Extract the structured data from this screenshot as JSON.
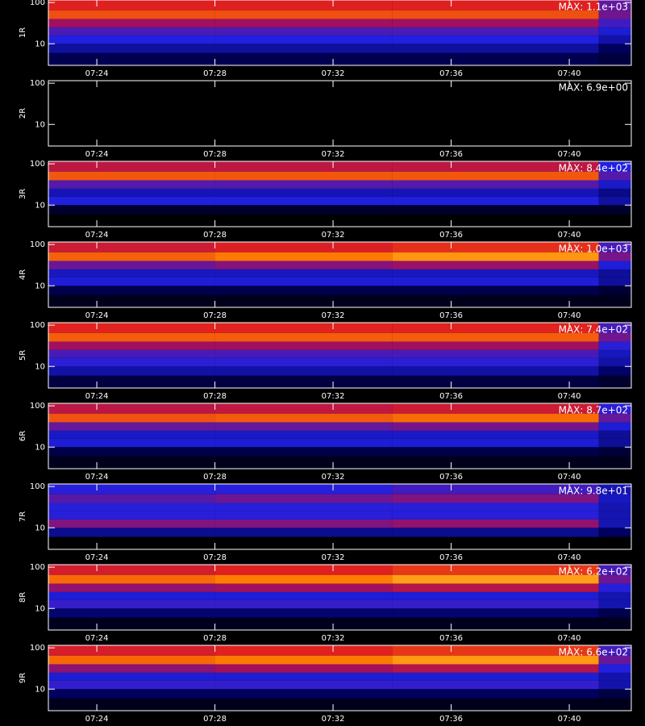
{
  "chart_data": {
    "type": "heatmap",
    "log_y": true,
    "xlim": [
      22.36,
      42.1
    ],
    "xticks": [
      {
        "value": 24,
        "label": "07:24"
      },
      {
        "value": 28,
        "label": "07:28"
      },
      {
        "value": 32,
        "label": "07:32"
      },
      {
        "value": 36,
        "label": "07:36"
      },
      {
        "value": 40,
        "label": "07:40"
      }
    ],
    "ylim": [
      3,
      115
    ],
    "yticks": [
      10,
      100
    ],
    "x_edges": [
      22.36,
      28,
      34,
      41,
      42.1
    ],
    "y_edges": [
      3,
      6,
      10,
      16,
      25,
      40,
      65,
      115
    ],
    "panels": [
      {
        "ylabel": "1R",
        "max": 1100,
        "max_label": "MAX: 1.1e+03",
        "z": [
          [
            7,
            7,
            7,
            4
          ],
          [
            22,
            22,
            22,
            10
          ],
          [
            46,
            46,
            46,
            25
          ],
          [
            66,
            66,
            66,
            40
          ],
          [
            134,
            134,
            134,
            60
          ],
          [
            380,
            380,
            380,
            90
          ],
          [
            270,
            270,
            270,
            80
          ]
        ]
      },
      {
        "ylabel": "2R",
        "max": 6.9,
        "max_label": "MAX: 6.9e+00",
        "z": [
          [
            0,
            0,
            0,
            0
          ],
          [
            0,
            0,
            0,
            0
          ],
          [
            0,
            0,
            0,
            0
          ],
          [
            0,
            0,
            0,
            0
          ],
          [
            0,
            0,
            0,
            0
          ],
          [
            0,
            0,
            0,
            0
          ],
          [
            0,
            0,
            0,
            0
          ]
        ]
      },
      {
        "ylabel": "3R",
        "max": 840,
        "max_label": "MAX: 8.4e+02",
        "z": [
          [
            0,
            0,
            0,
            0
          ],
          [
            2,
            2,
            2,
            2
          ],
          [
            40,
            40,
            40,
            20
          ],
          [
            25,
            25,
            25,
            15
          ],
          [
            60,
            60,
            60,
            30
          ],
          [
            320,
            320,
            320,
            60
          ],
          [
            150,
            150,
            150,
            40
          ]
        ]
      },
      {
        "ylabel": "4R",
        "max": 1000,
        "max_label": "MAX: 1.0e+03",
        "z": [
          [
            1,
            1,
            1,
            1
          ],
          [
            6,
            6,
            6,
            3
          ],
          [
            40,
            40,
            40,
            20
          ],
          [
            30,
            30,
            30,
            20
          ],
          [
            80,
            100,
            120,
            40
          ],
          [
            400,
            480,
            560,
            90
          ],
          [
            200,
            240,
            280,
            60
          ]
        ]
      },
      {
        "ylabel": "5R",
        "max": 740,
        "max_label": "MAX: 7.4e+02",
        "z": [
          [
            4,
            4,
            4,
            2
          ],
          [
            20,
            20,
            20,
            10
          ],
          [
            40,
            40,
            40,
            20
          ],
          [
            50,
            50,
            50,
            25
          ],
          [
            100,
            100,
            100,
            40
          ],
          [
            300,
            300,
            300,
            70
          ],
          [
            200,
            200,
            200,
            50
          ]
        ]
      },
      {
        "ylabel": "6R",
        "max": 870,
        "max_label": "MAX: 8.7e+02",
        "z": [
          [
            1,
            1,
            1,
            1
          ],
          [
            5,
            5,
            5,
            3
          ],
          [
            35,
            35,
            35,
            18
          ],
          [
            30,
            30,
            30,
            18
          ],
          [
            70,
            70,
            80,
            35
          ],
          [
            320,
            340,
            380,
            70
          ],
          [
            150,
            160,
            180,
            45
          ]
        ]
      },
      {
        "ylabel": "7R",
        "max": 98,
        "max_label": "MAX: 9.8e+01",
        "z": [
          [
            0,
            0,
            0,
            0
          ],
          [
            6,
            6,
            6,
            4
          ],
          [
            20,
            20,
            22,
            8
          ],
          [
            12,
            12,
            12,
            8
          ],
          [
            12,
            12,
            12,
            8
          ],
          [
            16,
            18,
            20,
            9
          ],
          [
            12,
            12,
            14,
            8
          ]
        ]
      },
      {
        "ylabel": "8R",
        "max": 620,
        "max_label": "MAX: 6.2e+02",
        "z": [
          [
            1,
            1,
            1,
            1
          ],
          [
            10,
            10,
            10,
            5
          ],
          [
            40,
            40,
            40,
            20
          ],
          [
            30,
            30,
            30,
            20
          ],
          [
            80,
            90,
            110,
            35
          ],
          [
            280,
            320,
            380,
            60
          ],
          [
            150,
            170,
            200,
            45
          ]
        ]
      },
      {
        "ylabel": "9R",
        "max": 660,
        "max_label": "MAX: 6.6e+02",
        "z": [
          [
            1,
            1,
            1,
            1
          ],
          [
            8,
            8,
            8,
            4
          ],
          [
            40,
            40,
            40,
            20
          ],
          [
            30,
            30,
            30,
            20
          ],
          [
            80,
            95,
            115,
            35
          ],
          [
            290,
            330,
            390,
            60
          ],
          [
            160,
            180,
            210,
            45
          ]
        ]
      }
    ]
  }
}
